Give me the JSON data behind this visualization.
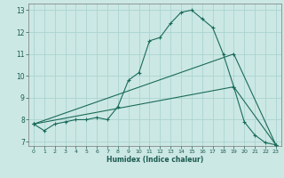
{
  "xlabel": "Humidex (Indice chaleur)",
  "bg_color": "#cce8e4",
  "grid_color": "#aad4d0",
  "line_color": "#1a6b5a",
  "xlim": [
    -0.5,
    23.5
  ],
  "ylim": [
    6.8,
    13.3
  ],
  "xticks": [
    0,
    1,
    2,
    3,
    4,
    5,
    6,
    7,
    8,
    9,
    10,
    11,
    12,
    13,
    14,
    15,
    16,
    17,
    18,
    19,
    20,
    21,
    22,
    23
  ],
  "yticks": [
    7,
    8,
    9,
    10,
    11,
    12,
    13
  ],
  "line1_x": [
    0,
    1,
    2,
    3,
    4,
    5,
    6,
    7,
    8,
    9,
    10,
    11,
    12,
    13,
    14,
    15,
    16,
    17,
    18,
    19,
    20,
    21,
    22,
    23
  ],
  "line1_y": [
    7.8,
    7.5,
    7.8,
    7.9,
    8.0,
    8.0,
    8.1,
    8.0,
    8.6,
    9.8,
    10.15,
    11.6,
    11.75,
    12.4,
    12.9,
    13.0,
    12.6,
    12.2,
    11.0,
    9.5,
    7.9,
    7.3,
    6.95,
    6.85
  ],
  "line2_x": [
    0,
    19,
    23
  ],
  "line2_y": [
    7.8,
    11.0,
    6.85
  ],
  "line3_x": [
    0,
    19,
    23
  ],
  "line3_y": [
    7.8,
    9.5,
    6.85
  ]
}
